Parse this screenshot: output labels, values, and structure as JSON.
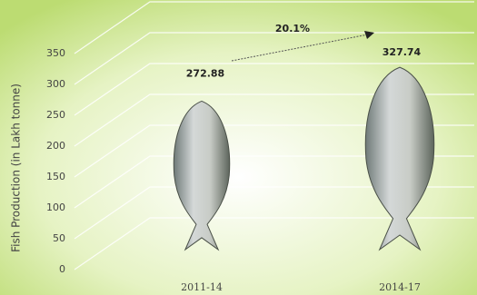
{
  "chart_data": {
    "type": "pictograph",
    "y_label": "Fish Production (in Lakh tonne)",
    "categories": [
      "2011-14",
      "2014-17"
    ],
    "values": [
      272.88,
      327.74
    ],
    "annotation": "20.1%",
    "ylim": [
      0,
      400
    ],
    "yticks": [
      0,
      50,
      100,
      150,
      200,
      250,
      300,
      350
    ],
    "grid": true,
    "color": "#b8bcc0"
  }
}
